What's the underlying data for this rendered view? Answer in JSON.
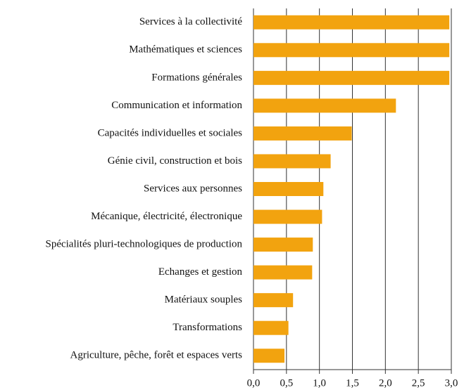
{
  "chart_data": {
    "type": "bar",
    "orientation": "horizontal",
    "categories": [
      "Services à la collectivité",
      "Mathématiques et sciences",
      "Formations générales",
      "Communication et information",
      "Capacités individuelles et sociales",
      "Génie civil, construction et bois",
      "Services aux personnes",
      "Mécanique, électricité, électronique",
      "Spécialités pluri-technologiques de production",
      "Echanges et gestion",
      "Matériaux souples",
      "Transformations",
      "Agriculture, pêche, forêt et espaces verts"
    ],
    "values": [
      2.97,
      2.97,
      2.97,
      2.16,
      1.49,
      1.17,
      1.06,
      1.04,
      0.9,
      0.89,
      0.6,
      0.53,
      0.47
    ],
    "color": "#f2a30f",
    "xlim": [
      0,
      3
    ],
    "xticks": [
      {
        "value": 0,
        "label": "0,0"
      },
      {
        "value": 0.5,
        "label": "0,5"
      },
      {
        "value": 1,
        "label": "1,0"
      },
      {
        "value": 1.5,
        "label": "1,5"
      },
      {
        "value": 2,
        "label": "2,0"
      },
      {
        "value": 2.5,
        "label": "2,5"
      },
      {
        "value": 3,
        "label": "3,0"
      }
    ],
    "grid": true
  }
}
